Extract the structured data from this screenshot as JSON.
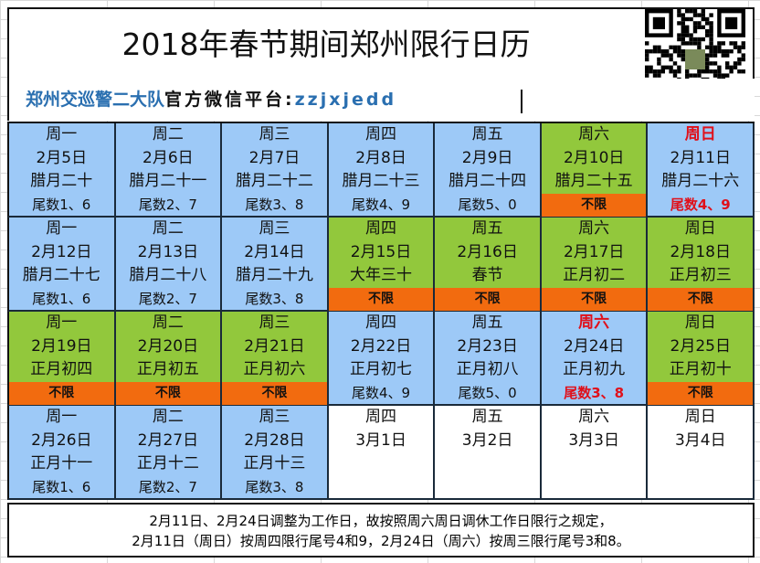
{
  "title": "2018年春节期间郑州限行日历",
  "subtitle": {
    "org": "郑州交巡警二大队",
    "platform": "官方微信平台:",
    "account": "zzjxjedd"
  },
  "colors": {
    "limited": "#9dc9f7",
    "holiday": "#92c83c",
    "unlimited": "#f26b0f",
    "alert": "#e0101a"
  },
  "qr_code": "qr-code-icon",
  "weeks": [
    [
      {
        "w": "周一",
        "d": "2月5日",
        "l": "腊月二十",
        "t": "尾数1、6",
        "c": "blue"
      },
      {
        "w": "周二",
        "d": "2月6日",
        "l": "腊月二十一",
        "t": "尾数2、7",
        "c": "blue"
      },
      {
        "w": "周三",
        "d": "2月7日",
        "l": "腊月二十二",
        "t": "尾数3、8",
        "c": "blue"
      },
      {
        "w": "周四",
        "d": "2月8日",
        "l": "腊月二十三",
        "t": "尾数4、9",
        "c": "blue"
      },
      {
        "w": "周五",
        "d": "2月9日",
        "l": "腊月二十四",
        "t": "尾数5、0",
        "c": "blue"
      },
      {
        "w": "周六",
        "d": "2月10日",
        "l": "腊月二十五",
        "t": "不限",
        "c": "green",
        "u": true
      },
      {
        "w": "周日",
        "d": "2月11日",
        "l": "腊月二十六",
        "t": "尾数4、9",
        "c": "blue",
        "r": true
      }
    ],
    [
      {
        "w": "周一",
        "d": "2月12日",
        "l": "腊月二十七",
        "t": "尾数1、6",
        "c": "blue"
      },
      {
        "w": "周二",
        "d": "2月13日",
        "l": "腊月二十八",
        "t": "尾数2、7",
        "c": "blue"
      },
      {
        "w": "周三",
        "d": "2月14日",
        "l": "腊月二十九",
        "t": "尾数3、8",
        "c": "blue"
      },
      {
        "w": "周四",
        "d": "2月15日",
        "l": "大年三十",
        "t": "不限",
        "c": "green",
        "u": true
      },
      {
        "w": "周五",
        "d": "2月16日",
        "l": "春节",
        "t": "不限",
        "c": "green",
        "u": true
      },
      {
        "w": "周六",
        "d": "2月17日",
        "l": "正月初二",
        "t": "不限",
        "c": "green",
        "u": true
      },
      {
        "w": "周日",
        "d": "2月18日",
        "l": "正月初三",
        "t": "不限",
        "c": "green",
        "u": true
      }
    ],
    [
      {
        "w": "周一",
        "d": "2月19日",
        "l": "正月初四",
        "t": "不限",
        "c": "green",
        "u": true
      },
      {
        "w": "周二",
        "d": "2月20日",
        "l": "正月初五",
        "t": "不限",
        "c": "green",
        "u": true
      },
      {
        "w": "周三",
        "d": "2月21日",
        "l": "正月初六",
        "t": "不限",
        "c": "green",
        "u": true
      },
      {
        "w": "周四",
        "d": "2月22日",
        "l": "正月初七",
        "t": "尾数4、9",
        "c": "blue"
      },
      {
        "w": "周五",
        "d": "2月23日",
        "l": "正月初八",
        "t": "尾数5、0",
        "c": "blue"
      },
      {
        "w": "周六",
        "d": "2月24日",
        "l": "正月初九",
        "t": "尾数3、8",
        "c": "blue",
        "r": true
      },
      {
        "w": "周日",
        "d": "2月25日",
        "l": "正月初十",
        "t": "不限",
        "c": "green",
        "u": true
      }
    ],
    [
      {
        "w": "周一",
        "d": "2月26日",
        "l": "正月十一",
        "t": "尾数1、6",
        "c": "blue"
      },
      {
        "w": "周二",
        "d": "2月27日",
        "l": "正月十二",
        "t": "尾数2、7",
        "c": "blue"
      },
      {
        "w": "周三",
        "d": "2月28日",
        "l": "正月十三",
        "t": "尾数3、8",
        "c": "blue"
      },
      {
        "w": "周四",
        "d": "3月1日",
        "l": "",
        "t": "",
        "c": "white"
      },
      {
        "w": "周五",
        "d": "3月2日",
        "l": "",
        "t": "",
        "c": "white"
      },
      {
        "w": "周六",
        "d": "3月3日",
        "l": "",
        "t": "",
        "c": "white"
      },
      {
        "w": "周日",
        "d": "3月4日",
        "l": "",
        "t": "",
        "c": "white"
      }
    ]
  ],
  "footer": {
    "line1": "2月11日、2月24日调整为工作日，故按照周六周日调休工作日限行之规定，",
    "line2": "2月11日（周日）按周四限行尾号4和9，2月24日（周六）按周三限行尾号3和8。"
  }
}
